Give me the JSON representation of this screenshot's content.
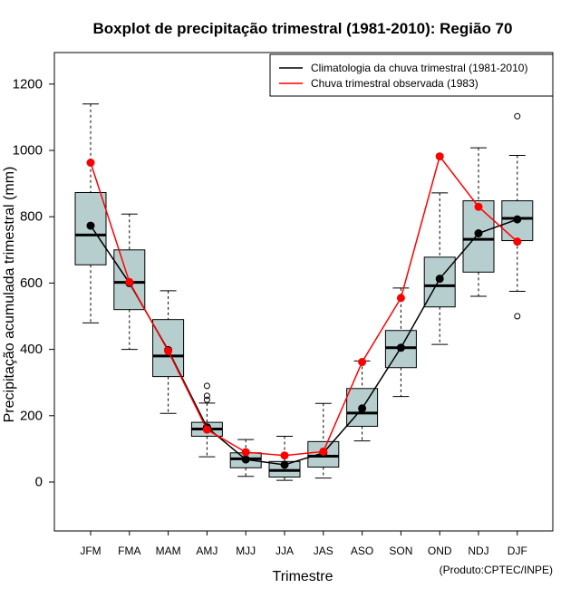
{
  "chart_data": {
    "type": "boxplot",
    "title": "Boxplot de precipitação trimestral (1981-2010): Região 70",
    "xlabel": "Trimestre",
    "ylabel": "Precipitação acumulada trimestral (mm)",
    "credit": "(Produto:CPTEC/INPE)",
    "ylim": [
      -145,
      1290
    ],
    "yticks": [
      0,
      200,
      400,
      600,
      800,
      1000,
      1200
    ],
    "categories": [
      "JFM",
      "FMA",
      "MAM",
      "AMJ",
      "MJJ",
      "JJA",
      "JAS",
      "ASO",
      "SON",
      "OND",
      "NDJ",
      "DJF"
    ],
    "boxes": [
      {
        "whisker_low": 480,
        "q1": 655,
        "median": 745,
        "q3": 873,
        "whisker_high": 1140,
        "outliers": []
      },
      {
        "whisker_low": 400,
        "q1": 520,
        "median": 602,
        "q3": 700,
        "whisker_high": 808,
        "outliers": []
      },
      {
        "whisker_low": 207,
        "q1": 318,
        "median": 380,
        "q3": 490,
        "whisker_high": 577,
        "outliers": []
      },
      {
        "whisker_low": 76,
        "q1": 138,
        "median": 160,
        "q3": 180,
        "whisker_high": 238,
        "outliers": [
          248,
          260,
          290
        ]
      },
      {
        "whisker_low": 17,
        "q1": 43,
        "median": 70,
        "q3": 88,
        "whisker_high": 128,
        "outliers": []
      },
      {
        "whisker_low": 5,
        "q1": 15,
        "median": 35,
        "q3": 62,
        "whisker_high": 138,
        "outliers": []
      },
      {
        "whisker_low": 12,
        "q1": 45,
        "median": 78,
        "q3": 122,
        "whisker_high": 237,
        "outliers": []
      },
      {
        "whisker_low": 124,
        "q1": 168,
        "median": 208,
        "q3": 282,
        "whisker_high": 365,
        "outliers": []
      },
      {
        "whisker_low": 258,
        "q1": 345,
        "median": 405,
        "q3": 457,
        "whisker_high": 585,
        "outliers": []
      },
      {
        "whisker_low": 415,
        "q1": 528,
        "median": 592,
        "q3": 678,
        "whisker_high": 872,
        "outliers": []
      },
      {
        "whisker_low": 560,
        "q1": 633,
        "median": 732,
        "q3": 848,
        "whisker_high": 1008,
        "outliers": []
      },
      {
        "whisker_low": 575,
        "q1": 728,
        "median": 795,
        "q3": 848,
        "whisker_high": 985,
        "outliers": [
          500,
          1103
        ]
      }
    ],
    "series": [
      {
        "name": "Climatologia da chuva trimestral (1981-2010)",
        "color": "#000000",
        "values": [
          773,
          600,
          398,
          165,
          68,
          52,
          88,
          222,
          405,
          613,
          750,
          792
        ]
      },
      {
        "name": "Chuva trimestral observada (1983)",
        "color": "#ff0000",
        "values": [
          963,
          603,
          395,
          158,
          90,
          80,
          92,
          362,
          555,
          982,
          830,
          725
        ]
      }
    ],
    "legend_position": "top-right",
    "box_color": "#b7cecf"
  }
}
